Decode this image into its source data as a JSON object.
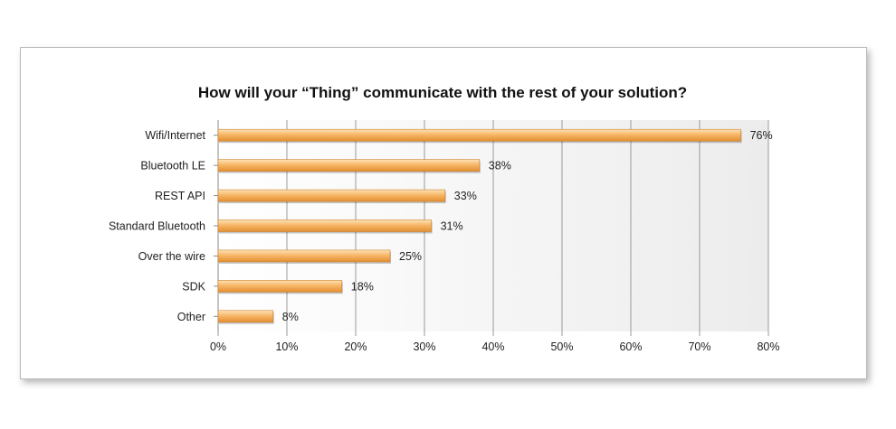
{
  "chart_data": {
    "type": "bar",
    "orientation": "horizontal",
    "title": "How will your “Thing” communicate with the rest of your solution?",
    "categories": [
      "Wifi/Internet",
      "Bluetooth LE",
      "REST API",
      "Standard Bluetooth",
      "Over the wire",
      "SDK",
      "Other"
    ],
    "values": [
      76,
      38,
      33,
      31,
      25,
      18,
      8
    ],
    "data_labels": [
      "76%",
      "38%",
      "33%",
      "31%",
      "25%",
      "18%",
      "8%"
    ],
    "xlim": [
      0,
      80
    ],
    "xticks": [
      0,
      10,
      20,
      30,
      40,
      50,
      60,
      70,
      80
    ],
    "xtick_labels": [
      "0%",
      "10%",
      "20%",
      "30%",
      "40%",
      "50%",
      "60%",
      "70%",
      "80%"
    ],
    "grid": true,
    "legend": "none",
    "bar_color": "#f5b25c"
  }
}
